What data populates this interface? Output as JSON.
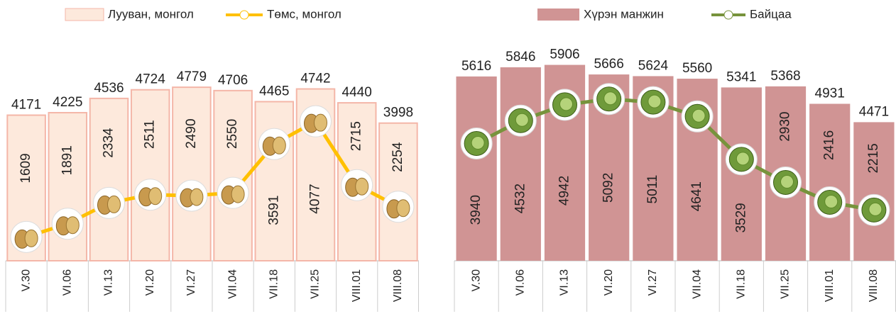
{
  "chart_data": [
    {
      "type": "bar",
      "categories": [
        "V.30",
        "VI.06",
        "VI.13",
        "VI.20",
        "VI.27",
        "VII.04",
        "VII.18",
        "VII.25",
        "VIII.01",
        "VIII.08"
      ],
      "series": [
        {
          "name": "Лууван, монгол",
          "color": "#fde9dc",
          "values": [
            4171,
            4225,
            4536,
            4724,
            4779,
            4706,
            4465,
            4742,
            4440,
            3998
          ]
        },
        {
          "name": "Төмс, монгол",
          "color": "#ffc000",
          "axis": "y2",
          "values": [
            1609,
            1891,
            2334,
            2511,
            2490,
            2550,
            3591,
            4077,
            2715,
            2254
          ]
        }
      ],
      "ylim": [
        1000,
        6000
      ],
      "y2lim": [
        1100,
        6000
      ]
    },
    {
      "type": "bar",
      "categories": [
        "V.30",
        "VI.06",
        "VI.13",
        "VI.20",
        "VI.27",
        "VII.04",
        "VII.18",
        "VII.25",
        "VIII.01",
        "VIII.08"
      ],
      "series": [
        {
          "name": "Хүрэн манжин",
          "color": "#d09494",
          "values": [
            5616,
            5846,
            5906,
            5666,
            5624,
            5560,
            5341,
            5368,
            4931,
            4471
          ]
        },
        {
          "name": "Байцаа",
          "color": "#77933c",
          "axis": "y2",
          "values": [
            3940,
            4532,
            4942,
            5092,
            5011,
            4641,
            3529,
            2930,
            2416,
            2215
          ]
        }
      ],
      "ylim": [
        1000,
        6750
      ],
      "y2lim": [
        900,
        6850
      ]
    }
  ]
}
